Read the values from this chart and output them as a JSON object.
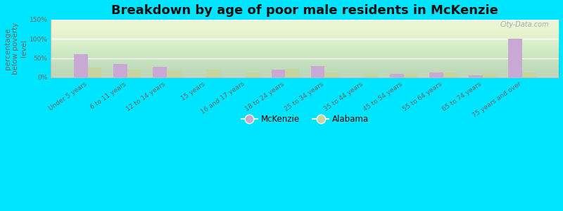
{
  "title": "Breakdown by age of poor male residents in McKenzie",
  "ylabel": "percentage\nbelow poverty\nlevel",
  "categories": [
    "Under 5 years",
    "6 to 11 years",
    "12 to 14 years",
    "15 years",
    "16 and 17 years",
    "18 to 24 years",
    "25 to 34 years",
    "35 to 44 years",
    "45 to 54 years",
    "55 to 64 years",
    "65 to 74 years",
    "75 years and over"
  ],
  "mckenzie": [
    60,
    35,
    28,
    0,
    0,
    20,
    30,
    0,
    10,
    12,
    5,
    100
  ],
  "alabama": [
    25,
    20,
    18,
    20,
    13,
    22,
    12,
    10,
    10,
    13,
    10,
    12
  ],
  "mckenzie_color": "#c9a8d4",
  "alabama_color": "#c8d4a0",
  "plot_bg_color": "#e8f4d8",
  "outer_bg": "#00e5ff",
  "ylim": [
    0,
    150
  ],
  "yticks": [
    0,
    50,
    100,
    150
  ],
  "ytick_labels": [
    "0%",
    "50%",
    "100%",
    "150%"
  ],
  "bar_width": 0.35,
  "title_fontsize": 13,
  "axis_label_fontsize": 7.5,
  "tick_fontsize": 6.5,
  "legend_mckenzie": "McKenzie",
  "legend_alabama": "Alabama",
  "watermark": "City-Data.com"
}
